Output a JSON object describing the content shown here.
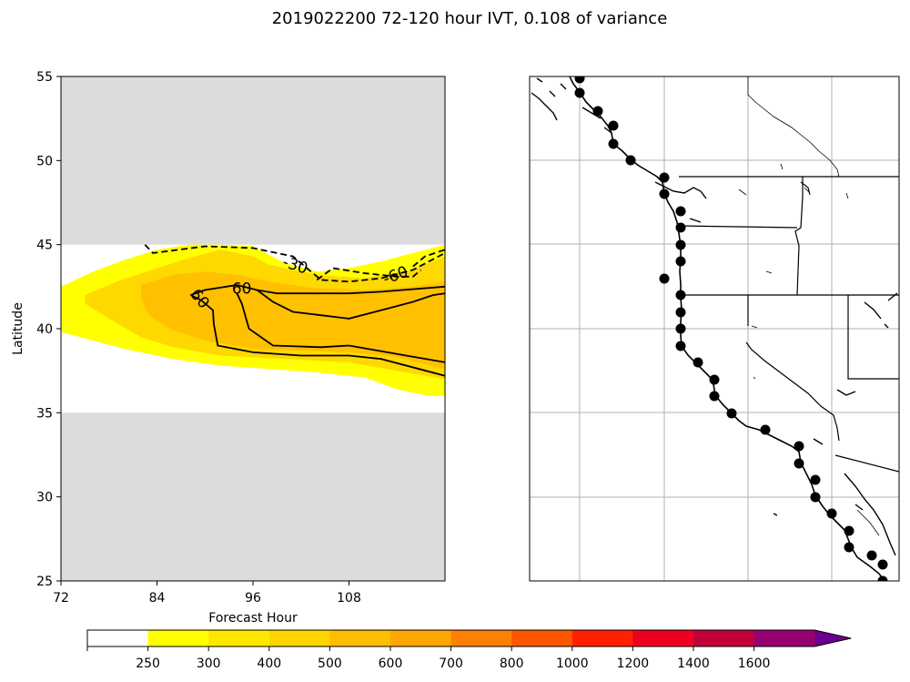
{
  "figure": {
    "title": "2019022200 72-120 hour IVT, 0.108 of variance"
  },
  "chart_data": [
    {
      "type": "contour",
      "xlabel": "Forecast Hour",
      "ylabel": "Latitude",
      "xlim": [
        72,
        120
      ],
      "ylim": [
        25,
        55
      ],
      "x_ticks": [
        72,
        84,
        96,
        108
      ],
      "y_ticks": [
        25,
        30,
        35,
        40,
        45,
        50,
        55
      ],
      "masked_outside_lat": [
        35,
        45
      ],
      "mask_color": "#dcdcdc",
      "filled_regions": [
        {
          "level": "250-300",
          "color": "#ffff00",
          "outline": [
            [
              72,
              42.5
            ],
            [
              76,
              43.4
            ],
            [
              80,
              44.1
            ],
            [
              84,
              44.7
            ],
            [
              88,
              45.0
            ],
            [
              92,
              45.0
            ],
            [
              96,
              44.9
            ],
            [
              100,
              43.9
            ],
            [
              104,
              43.4
            ],
            [
              108,
              43.6
            ],
            [
              112,
              44.0
            ],
            [
              116,
              44.5
            ],
            [
              120,
              45.0
            ],
            [
              120,
              36.0
            ],
            [
              118,
              36.0
            ],
            [
              114,
              36.4
            ],
            [
              110,
              37.1
            ],
            [
              104,
              37.4
            ],
            [
              98,
              37.6
            ],
            [
              92,
              37.8
            ],
            [
              86,
              38.2
            ],
            [
              80,
              38.8
            ],
            [
              72,
              39.8
            ]
          ]
        },
        {
          "level": "300-400",
          "color": "#ffd800",
          "outline": [
            [
              75,
              42.0
            ],
            [
              79,
              42.8
            ],
            [
              84,
              43.6
            ],
            [
              88,
              44.2
            ],
            [
              92,
              44.7
            ],
            [
              96,
              44.3
            ],
            [
              98,
              43.8
            ],
            [
              104,
              43.2
            ],
            [
              110,
              43.0
            ],
            [
              116,
              43.5
            ],
            [
              120,
              44.3
            ],
            [
              120,
              37.0
            ],
            [
              114,
              37.5
            ],
            [
              108,
              38.0
            ],
            [
              100,
              38.2
            ],
            [
              92,
              38.4
            ],
            [
              86,
              38.9
            ],
            [
              82,
              39.5
            ],
            [
              78,
              40.6
            ],
            [
              75,
              41.5
            ]
          ]
        },
        {
          "level": "400-500",
          "color": "#ffc000",
          "outline": [
            [
              82,
              42.6
            ],
            [
              86,
              43.2
            ],
            [
              90,
              43.4
            ],
            [
              94,
              43.2
            ],
            [
              98,
              42.8
            ],
            [
              104,
              42.4
            ],
            [
              110,
              42.3
            ],
            [
              116,
              42.5
            ],
            [
              120,
              42.8
            ],
            [
              120,
              37.6
            ],
            [
              114,
              38.3
            ],
            [
              108,
              38.6
            ],
            [
              102,
              38.7
            ],
            [
              96,
              38.8
            ],
            [
              90,
              39.3
            ],
            [
              86,
              39.9
            ],
            [
              83,
              40.8
            ],
            [
              82,
              41.8
            ]
          ]
        }
      ],
      "contour_lines": [
        {
          "label": "60",
          "style": "solid",
          "points": [
            [
              88.2,
              42.0
            ],
            [
              90.0,
              42.3
            ],
            [
              94.0,
              42.6
            ],
            [
              96.5,
              42.3
            ],
            [
              99.0,
              42.1
            ],
            [
              104.0,
              42.1
            ],
            [
              108.0,
              42.1
            ],
            [
              112.0,
              42.2
            ],
            [
              120.0,
              42.5
            ]
          ]
        },
        {
          "label": "60",
          "style": "solid",
          "points": [
            [
              88.2,
              42.0
            ],
            [
              89.5,
              41.7
            ],
            [
              91.0,
              41.1
            ],
            [
              91.1,
              40.3
            ],
            [
              91.6,
              39.0
            ],
            [
              96.0,
              38.6
            ],
            [
              102.0,
              38.4
            ],
            [
              108.0,
              38.4
            ],
            [
              112.0,
              38.2
            ],
            [
              120.0,
              37.2
            ]
          ]
        },
        {
          "label": "",
          "style": "solid",
          "points": [
            [
              94.0,
              42.1
            ],
            [
              94.6,
              41.5
            ],
            [
              95.5,
              40.0
            ],
            [
              98.5,
              39.0
            ],
            [
              104.5,
              38.9
            ],
            [
              108.0,
              39.0
            ],
            [
              114.0,
              38.5
            ],
            [
              120.0,
              38.0
            ]
          ]
        },
        {
          "label": "",
          "style": "solid",
          "points": [
            [
              96.5,
              42.3
            ],
            [
              98.5,
              41.6
            ],
            [
              101.0,
              41.0
            ],
            [
              104.5,
              40.8
            ],
            [
              108.0,
              40.6
            ],
            [
              112.0,
              41.1
            ],
            [
              116.0,
              41.6
            ],
            [
              118.5,
              42.0
            ],
            [
              120.0,
              42.1
            ]
          ]
        },
        {
          "label": "-30",
          "style": "dashed",
          "points": [
            [
              82.5,
              45.0
            ],
            [
              83.5,
              44.5
            ],
            [
              90.0,
              44.9
            ],
            [
              96.0,
              44.8
            ],
            [
              101.0,
              44.3
            ],
            [
              104.5,
              42.9
            ],
            [
              108.0,
              42.8
            ],
            [
              112.0,
              43.0
            ],
            [
              116.0,
              43.5
            ],
            [
              120.0,
              44.5
            ]
          ]
        },
        {
          "label": "-60",
          "style": "dashed",
          "points": [
            [
              104.0,
              42.9
            ],
            [
              106.0,
              43.6
            ],
            [
              110.0,
              43.3
            ],
            [
              114.0,
              43.1
            ],
            [
              116.0,
              43.1
            ],
            [
              117.0,
              43.5
            ]
          ]
        },
        {
          "label": "",
          "style": "dashed",
          "points": [
            [
              116.0,
              43.7
            ],
            [
              117.5,
              44.3
            ],
            [
              120.0,
              44.7
            ]
          ]
        }
      ]
    },
    {
      "type": "map",
      "region": "US West Coast",
      "point_marker": "black-dot",
      "points_on_coast": 32
    }
  ],
  "colorbar": {
    "ticks": [
      "250",
      "300",
      "400",
      "500",
      "600",
      "700",
      "800",
      "1000",
      "1200",
      "1400",
      "1600"
    ],
    "colors": [
      "#ffffff",
      "#ffff00",
      "#ffe800",
      "#ffd400",
      "#ffbd00",
      "#ffa500",
      "#ff8000",
      "#ff5500",
      "#ff2000",
      "#ee0020",
      "#c2003a",
      "#960070",
      "#6c0090"
    ],
    "extend": "max"
  }
}
